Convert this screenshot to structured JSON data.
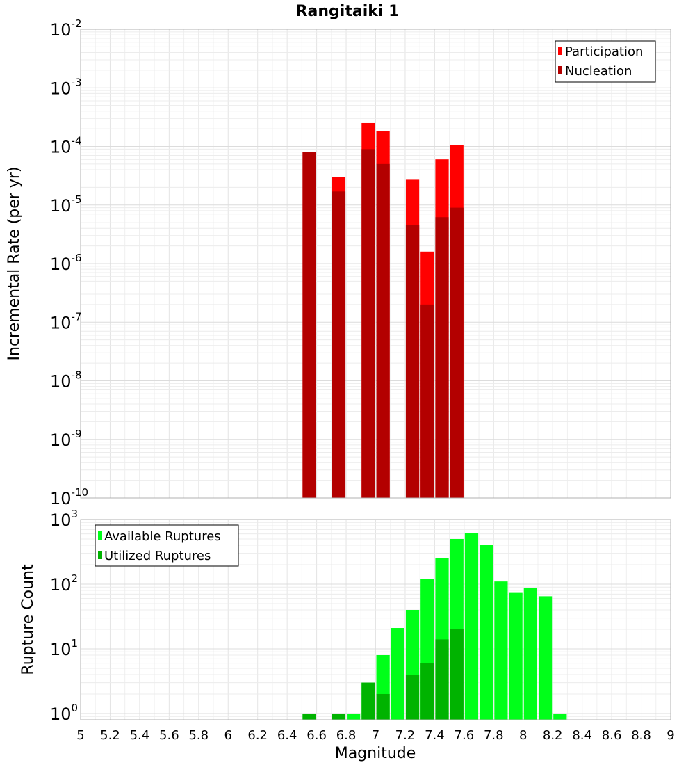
{
  "chart_data": [
    {
      "type": "bar",
      "title": "Rangitaiki 1",
      "xlabel": "",
      "ylabel": "Incremental Rate (per yr)",
      "xlim": [
        5,
        9
      ],
      "ylim": [
        1e-10,
        0.01
      ],
      "yscale": "log",
      "grid": true,
      "legend_position": "top-right",
      "bin_width": 0.1,
      "y_tick_labels": [
        {
          "base": "10",
          "exp": "-2",
          "value": 0.01
        },
        {
          "base": "10",
          "exp": "-3",
          "value": 0.001
        },
        {
          "base": "10",
          "exp": "-4",
          "value": 0.0001
        },
        {
          "base": "10",
          "exp": "-5",
          "value": 1e-05
        },
        {
          "base": "10",
          "exp": "-6",
          "value": 1e-06
        },
        {
          "base": "10",
          "exp": "-7",
          "value": 1e-07
        },
        {
          "base": "10",
          "exp": "-8",
          "value": 1e-08
        },
        {
          "base": "10",
          "exp": "-9",
          "value": 1e-09
        },
        {
          "base": "10",
          "exp": "-10",
          "value": 1e-10
        }
      ],
      "series": [
        {
          "name": "Participation",
          "color": "#ff0000",
          "x": [
            6.55,
            6.75,
            6.95,
            7.05,
            7.25,
            7.35,
            7.45,
            7.55
          ],
          "values": [
            8e-05,
            3e-05,
            0.00025,
            0.00018,
            2.7e-05,
            1.6e-06,
            6e-05,
            0.000105
          ]
        },
        {
          "name": "Nucleation",
          "color": "#b30000",
          "x": [
            6.55,
            6.75,
            6.95,
            7.05,
            7.25,
            7.35,
            7.45,
            7.55
          ],
          "values": [
            8e-05,
            1.7e-05,
            9e-05,
            5e-05,
            4.6e-06,
            2e-07,
            6.2e-06,
            9e-06
          ]
        }
      ]
    },
    {
      "type": "bar",
      "title": "",
      "xlabel": "Magnitude",
      "ylabel": "Rupture Count",
      "xlim": [
        5,
        9
      ],
      "ylim": [
        0.8,
        1000
      ],
      "yscale": "log",
      "grid": true,
      "legend_position": "top-left",
      "bin_width": 0.1,
      "x_tick_labels": [
        "5",
        "5.2",
        "5.4",
        "5.6",
        "5.8",
        "6",
        "6.2",
        "6.4",
        "6.6",
        "6.8",
        "7",
        "7.2",
        "7.4",
        "7.6",
        "7.8",
        "8",
        "8.2",
        "8.4",
        "8.6",
        "8.8",
        "9"
      ],
      "y_tick_labels": [
        {
          "base": "10",
          "exp": "3",
          "value": 1000
        },
        {
          "base": "10",
          "exp": "2",
          "value": 100
        },
        {
          "base": "10",
          "exp": "1",
          "value": 10
        },
        {
          "base": "10",
          "exp": "0",
          "value": 1
        }
      ],
      "series": [
        {
          "name": "Available Ruptures",
          "color": "#00ff19",
          "x": [
            6.55,
            6.75,
            6.85,
            6.95,
            7.05,
            7.15,
            7.25,
            7.35,
            7.45,
            7.55,
            7.65,
            7.75,
            7.85,
            7.95,
            8.05,
            8.15,
            8.25
          ],
          "values": [
            1,
            1,
            1,
            3,
            8,
            21,
            40,
            120,
            250,
            500,
            620,
            410,
            110,
            75,
            88,
            65,
            1
          ]
        },
        {
          "name": "Utilized Ruptures",
          "color": "#00b300",
          "x": [
            6.55,
            6.75,
            6.95,
            7.05,
            7.25,
            7.35,
            7.45,
            7.55
          ],
          "values": [
            1,
            1,
            3,
            2,
            4,
            6,
            14,
            20
          ]
        }
      ]
    }
  ]
}
